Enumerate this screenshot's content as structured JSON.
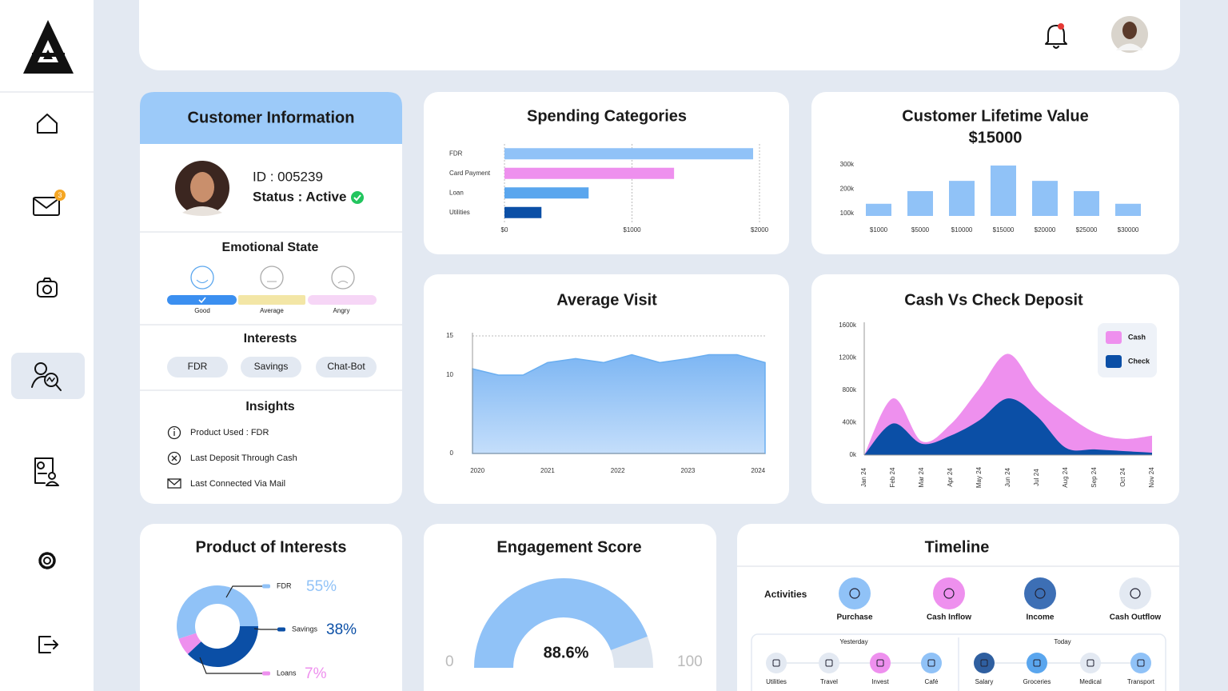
{
  "sidebar": {
    "mail_badge": "3"
  },
  "customer_info": {
    "title": "Customer Information",
    "id": "ID : 005239",
    "status": "Status : Active",
    "emotional_state": {
      "title": "Emotional State",
      "levels": [
        "Good",
        "Average",
        "Angry"
      ]
    },
    "interests": {
      "title": "Interests",
      "tags": [
        "FDR",
        "Savings",
        "Chat-Bot"
      ]
    },
    "insights": {
      "title": "Insights",
      "items": [
        "Product Used : FDR",
        "Last Deposit Through Cash",
        "Last Connected Via Mail"
      ]
    }
  },
  "chart_data": [
    {
      "type": "bar",
      "horizontal": true,
      "title": "Spending Categories",
      "categories": [
        "FDR",
        "Card Payment",
        "Loan",
        "Utilities"
      ],
      "values": [
        1950,
        1330,
        660,
        290
      ],
      "colors": [
        "#90c2f7",
        "#ee90ee",
        "#5aa6ee",
        "#0b4fa6"
      ],
      "xlim": [
        0,
        2000
      ],
      "xticks": [
        {
          "value": 0,
          "label": "$0"
        },
        {
          "value": 1000,
          "label": "$1000"
        },
        {
          "value": 2000,
          "label": "$2000"
        }
      ],
      "grid": true
    },
    {
      "type": "bar",
      "title": "Customer Lifetime Value",
      "subtitle": "$15000",
      "categories": [
        "$1000",
        "$5000",
        "$10000",
        "$15000",
        "$20000",
        "$25000",
        "$30000"
      ],
      "values": [
        140000,
        192000,
        234000,
        297000,
        234000,
        192000,
        140000
      ],
      "color": "#90c2f7",
      "ylim": [
        90000,
        310000
      ],
      "yticks": [
        {
          "value": 100000,
          "label": "100k"
        },
        {
          "value": 200000,
          "label": "200k"
        },
        {
          "value": 300000,
          "label": "300k"
        }
      ],
      "grid": false
    },
    {
      "type": "area",
      "title": "Average Visit",
      "x": [
        2019.93,
        2020.3,
        2020.65,
        2021.0,
        2021.4,
        2021.8,
        2022.2,
        2022.6,
        2023.0,
        2023.3,
        2023.7,
        2024.1
      ],
      "values": [
        10.8,
        10,
        10,
        11.6,
        12.1,
        11.6,
        12.6,
        11.6,
        12.1,
        12.6,
        12.6,
        11.6
      ],
      "color": "#8fc0f5",
      "xlim": [
        2019.93,
        2024.1
      ],
      "xticks": [
        2020,
        2021,
        2022,
        2023,
        2024
      ],
      "ylim": [
        0,
        15
      ],
      "yticks": [
        0,
        10,
        15
      ],
      "grid": true
    },
    {
      "type": "area",
      "title": "Cash Vs Check Deposit",
      "categories": [
        "Jan 24",
        "Feb 24",
        "Mar 24",
        "Apr 24",
        "May 24",
        "Jun 24",
        "Jul 24",
        "Aug 24",
        "Sep 24",
        "Oct 24",
        "Nov 24"
      ],
      "series": [
        {
          "name": "Cash",
          "color": "#ee90ee",
          "values": [
            0,
            700000,
            170000,
            380000,
            820000,
            1250000,
            800000,
            510000,
            280000,
            200000,
            240000
          ]
        },
        {
          "name": "Check",
          "color": "#0b4fa6",
          "values": [
            0,
            390000,
            140000,
            240000,
            430000,
            700000,
            480000,
            90000,
            70000,
            50000,
            30000
          ]
        }
      ],
      "ylim": [
        0,
        1600000
      ],
      "yticks": [
        {
          "value": 0,
          "label": "0k"
        },
        {
          "value": 400000,
          "label": "400k"
        },
        {
          "value": 800000,
          "label": "800k"
        },
        {
          "value": 1200000,
          "label": "1200k"
        },
        {
          "value": 1600000,
          "label": "1600k"
        }
      ],
      "grid": false,
      "legend": "top-right"
    },
    {
      "type": "pie",
      "donut": true,
      "title": "Product of Interests",
      "categories": [
        "FDR",
        "Savings",
        "Loans"
      ],
      "values": [
        55,
        38,
        7
      ],
      "value_labels": [
        "55%",
        "38%",
        "7%"
      ],
      "colors": [
        "#90c2f7",
        "#0b4fa6",
        "#ee90ee"
      ]
    },
    {
      "type": "gauge",
      "title": "Engagement Score",
      "value": 88.6,
      "value_label": "88.6%",
      "ylim": [
        0,
        100
      ],
      "yticks": [
        0,
        100
      ],
      "color": "#90c2f7"
    }
  ],
  "timeline": {
    "title": "Timeline",
    "label": "Activities",
    "activities": [
      "Purchase",
      "Cash Inflow",
      "Income",
      "Cash Outflow"
    ],
    "groups": [
      {
        "title": "Yesterday",
        "items": [
          "Utilities",
          "Travel",
          "Invest",
          "Café"
        ]
      },
      {
        "title": "Today",
        "items": [
          "Salary",
          "Groceries",
          "Medical",
          "Transport"
        ]
      }
    ]
  }
}
